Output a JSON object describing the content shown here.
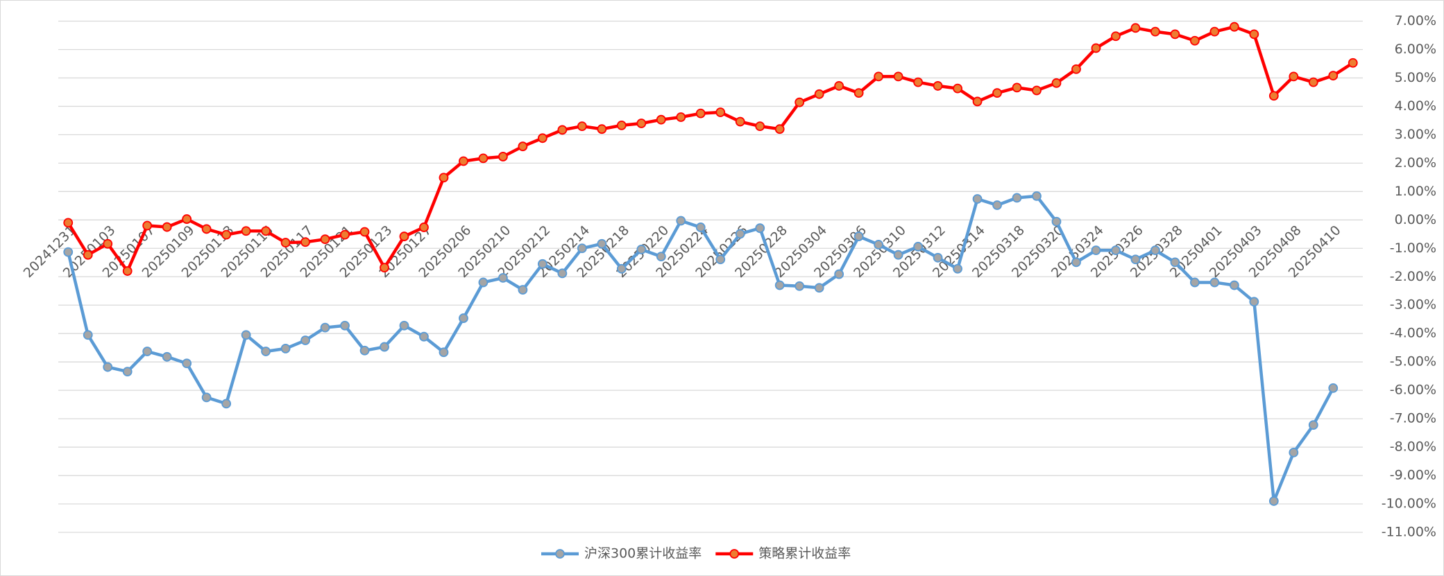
{
  "chart_data": {
    "type": "line",
    "categories": [
      "20241231",
      null,
      "20250103",
      null,
      "20250107",
      null,
      "20250109",
      null,
      "20250113",
      null,
      "20250115",
      null,
      "20250117",
      null,
      "20250121",
      null,
      "20250123",
      null,
      "20250127",
      null,
      "20250206",
      null,
      "20250210",
      null,
      "20250212",
      null,
      "20250214",
      null,
      "20250218",
      null,
      "20250220",
      null,
      "20250224",
      null,
      "20250226",
      null,
      "20250228",
      null,
      "20250304",
      null,
      "20250306",
      null,
      "20250310",
      null,
      "20250312",
      null,
      "20250314",
      null,
      "20250318",
      null,
      "20250320",
      null,
      "20250324",
      null,
      "20250326",
      null,
      "20250328",
      null,
      "20250401",
      null,
      "20250403",
      null,
      "20250408",
      null,
      "20250410",
      null
    ],
    "series": [
      {
        "name": "沪深300累计收益率",
        "color": "#5b9bd5",
        "marker_color": "#a5a5a5",
        "values": [
          -1.13,
          -4.05,
          -5.18,
          -5.34,
          -4.63,
          -4.82,
          -5.05,
          -6.25,
          -6.47,
          -4.05,
          -4.63,
          -4.53,
          -4.24,
          -3.79,
          -3.72,
          -4.6,
          -4.47,
          -3.72,
          -4.11,
          -4.66,
          -3.46,
          -2.2,
          -2.04,
          -2.46,
          -1.55,
          -1.88,
          -1.0,
          -0.84,
          -1.72,
          -1.04,
          -1.29,
          -0.03,
          -0.26,
          -1.39,
          -0.49,
          -0.29,
          -2.3,
          -2.33,
          -2.39,
          -1.91,
          -0.58,
          -0.87,
          -1.23,
          -0.94,
          -1.33,
          -1.72,
          0.74,
          0.52,
          0.78,
          0.84,
          -0.06,
          -1.49,
          -1.07,
          -1.07,
          -1.39,
          -1.07,
          -1.49,
          -2.2,
          -2.2,
          -2.3,
          -2.88,
          -9.9,
          -8.19,
          -7.22,
          -5.92,
          null
        ]
      },
      {
        "name": "策略累计收益率",
        "color": "#ff0000",
        "marker_color": "#ed7d31",
        "values": [
          -0.1,
          -1.23,
          -0.84,
          -1.8,
          -0.2,
          -0.25,
          0.03,
          -0.32,
          -0.52,
          -0.39,
          -0.39,
          -0.8,
          -0.78,
          -0.68,
          -0.52,
          -0.42,
          -1.68,
          -0.58,
          -0.26,
          1.49,
          2.07,
          2.17,
          2.23,
          2.59,
          2.88,
          3.17,
          3.3,
          3.2,
          3.33,
          3.4,
          3.53,
          3.62,
          3.75,
          3.79,
          3.46,
          3.3,
          3.2,
          4.14,
          4.43,
          4.72,
          4.47,
          5.05,
          5.05,
          4.85,
          4.72,
          4.63,
          4.17,
          4.47,
          4.66,
          4.56,
          4.82,
          5.31,
          6.05,
          6.47,
          6.76,
          6.63,
          6.54,
          6.31,
          6.63,
          6.8,
          6.54,
          4.37,
          5.05,
          4.85,
          5.08,
          5.53
        ]
      }
    ],
    "ylim": [
      -11,
      7
    ],
    "yticks": [
      {
        "value": 7,
        "label": "7.00%"
      },
      {
        "value": 6,
        "label": "6.00%"
      },
      {
        "value": 5,
        "label": "5.00%"
      },
      {
        "value": 4,
        "label": "4.00%"
      },
      {
        "value": 3,
        "label": "3.00%"
      },
      {
        "value": 2,
        "label": "2.00%"
      },
      {
        "value": 1,
        "label": "1.00%"
      },
      {
        "value": 0,
        "label": "0.00%"
      },
      {
        "value": -1,
        "label": "-1.00%"
      },
      {
        "value": -2,
        "label": "-2.00%"
      },
      {
        "value": -3,
        "label": "-3.00%"
      },
      {
        "value": -4,
        "label": "-4.00%"
      },
      {
        "value": -5,
        "label": "-5.00%"
      },
      {
        "value": -6,
        "label": "-6.00%"
      },
      {
        "value": -7,
        "label": "-7.00%"
      },
      {
        "value": -8,
        "label": "-8.00%"
      },
      {
        "value": -9,
        "label": "-9.00%"
      },
      {
        "value": -10,
        "label": "-10.00%"
      },
      {
        "value": -11,
        "label": "-11.00%"
      }
    ],
    "grid": true,
    "legend": "bottom"
  }
}
